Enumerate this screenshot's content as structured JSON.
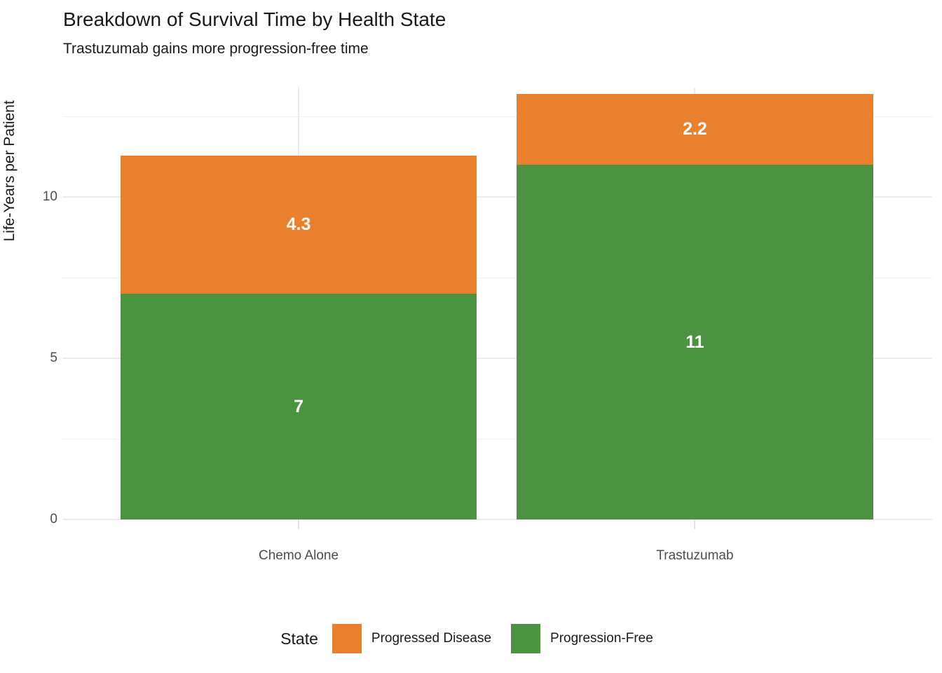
{
  "title": "Breakdown of Survival Time by Health State",
  "subtitle": "Trastuzumab gains more progression-free time",
  "y_axis_title": "Life-Years per Patient",
  "legend": {
    "title": "State",
    "items": [
      {
        "label": "Progressed Disease",
        "color": "#E8802E"
      },
      {
        "label": "Progression-Free",
        "color": "#4B9341"
      }
    ]
  },
  "colors": {
    "progressed_disease": "#E8802E",
    "progression_free": "#4B9341",
    "background": "#FFFFFF",
    "gridline": "#EBEBEB",
    "tick_text": "#4D4D4D",
    "bar_label_text": "#FFFFFF"
  },
  "chart_data": {
    "type": "bar",
    "stacked": true,
    "title": "Breakdown of Survival Time by Health State",
    "subtitle": "Trastuzumab gains more progression-free time",
    "xlabel": "",
    "ylabel": "Life-Years per Patient",
    "categories": [
      "Chemo Alone",
      "Trastuzumab"
    ],
    "series": [
      {
        "name": "Progression-Free",
        "color": "#4B9341",
        "values": [
          7,
          11
        ],
        "labels": [
          "7",
          "11"
        ]
      },
      {
        "name": "Progressed Disease",
        "color": "#E8802E",
        "values": [
          4.3,
          2.2
        ],
        "labels": [
          "4.3",
          "2.2"
        ]
      }
    ],
    "stack_order": "bottom_to_top",
    "totals": [
      11.3,
      13.2
    ],
    "ylim": [
      0,
      13.4
    ],
    "y_major_ticks": [
      0,
      5,
      10
    ],
    "y_minor_gridlines": [
      2.5,
      7.5,
      12.5
    ],
    "grid": true,
    "vertical_gridlines_at_categories": true,
    "legend_position": "bottom",
    "legend_title": "State"
  }
}
